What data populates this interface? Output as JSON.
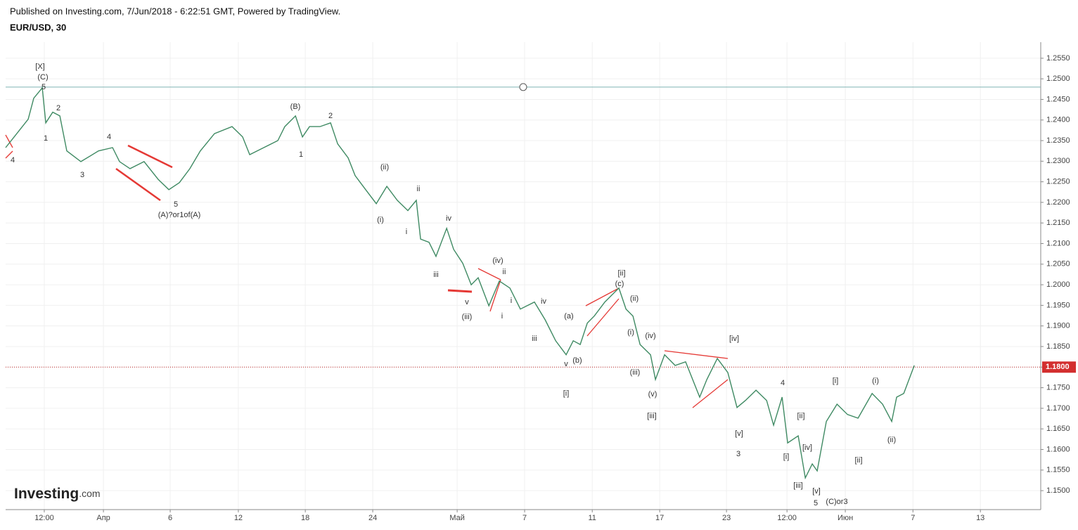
{
  "header": "Published on Investing.com, 7/Jun/2018 - 6:22:51 GMT, Powered by TradingView.",
  "logo": "Investing",
  "logo_suffix": ".com",
  "chart_data": {
    "type": "line",
    "title": "EUR/USD, 30",
    "x": [
      0,
      0.5,
      1.33,
      1.66,
      2.16,
      2.37,
      2.78,
      3.2,
      3.61,
      4.44,
      5.48,
      6.31,
      6.72,
      7.34,
      8.17,
      9.0,
      9.63,
      10.25,
      10.87,
      11.49,
      12.32,
      13.36,
      13.98,
      14.4,
      15.23,
      16.06,
      16.47,
      17.1,
      17.51,
      17.93,
      18.55,
      19.17,
      19.59,
      20.21,
      20.62,
      21.24,
      21.87,
      22.49,
      23.11,
      23.73,
      24.23,
      24.48,
      24.98,
      25.39,
      26.02,
      26.43,
      26.97,
      27.47,
      27.88,
      28.51,
      29.13,
      29.75,
      30.37,
      31.2,
      31.83,
      32.45,
      33.07,
      33.49,
      33.9,
      34.32,
      34.73,
      35.35,
      36.18,
      36.6,
      37.01,
      37.43,
      38.05,
      38.34,
      38.88,
      39.5,
      40.12,
      40.95,
      41.37,
      41.99,
      42.61,
      43.15,
      43.65,
      44.27,
      44.9,
      45.31,
      45.81,
      46.14,
      46.76,
      47.18,
      47.59,
      47.88,
      48.42,
      49.05,
      49.67,
      50.29,
      51.12,
      51.74,
      52.28,
      52.57,
      52.99,
      53.61
    ],
    "series": [
      {
        "name": "EUR/USD",
        "color": "#3f8a63",
        "values": [
          1.2333,
          1.2359,
          1.2402,
          1.2453,
          1.2478,
          1.2393,
          1.2419,
          1.241,
          1.2325,
          1.2299,
          1.2325,
          1.2333,
          1.2299,
          1.2282,
          1.2299,
          1.2256,
          1.2231,
          1.2248,
          1.2282,
          1.2325,
          1.2367,
          1.2384,
          1.2359,
          1.2316,
          1.2333,
          1.235,
          1.2384,
          1.241,
          1.2359,
          1.2384,
          1.2384,
          1.2393,
          1.2342,
          1.2308,
          1.2265,
          1.2231,
          1.2197,
          1.2239,
          1.2205,
          1.218,
          1.2205,
          1.2111,
          1.2103,
          1.2069,
          1.2137,
          1.2086,
          1.2052,
          1.2,
          1.2017,
          1.1949,
          1.2009,
          1.1992,
          1.1941,
          1.1958,
          1.1915,
          1.1864,
          1.183,
          1.1864,
          1.1855,
          1.1907,
          1.1924,
          1.1958,
          1.1992,
          1.1941,
          1.1924,
          1.1855,
          1.183,
          1.177,
          1.183,
          1.1804,
          1.1813,
          1.1727,
          1.177,
          1.1821,
          1.1787,
          1.1702,
          1.1719,
          1.1744,
          1.1719,
          1.1659,
          1.1727,
          1.1616,
          1.1633,
          1.1531,
          1.1565,
          1.1548,
          1.1668,
          1.171,
          1.1685,
          1.1676,
          1.1736,
          1.171,
          1.1668,
          1.1727,
          1.1736,
          1.1804
        ]
      }
    ],
    "xlim": [
      0,
      61.07
    ],
    "xticks": [
      {
        "value": 2.28,
        "label": "12:00"
      },
      {
        "value": 5.77,
        "label": "Апр"
      },
      {
        "value": 9.71,
        "label": "6"
      },
      {
        "value": 13.73,
        "label": "12"
      },
      {
        "value": 17.68,
        "label": "18"
      },
      {
        "value": 21.66,
        "label": "24"
      },
      {
        "value": 26.64,
        "label": "Май"
      },
      {
        "value": 30.62,
        "label": "7"
      },
      {
        "value": 34.61,
        "label": "11"
      },
      {
        "value": 38.59,
        "label": "17"
      },
      {
        "value": 42.53,
        "label": "23"
      },
      {
        "value": 46.1,
        "label": "12:00"
      },
      {
        "value": 49.54,
        "label": "Июн"
      },
      {
        "value": 53.53,
        "label": "7"
      },
      {
        "value": 57.51,
        "label": "13"
      }
    ],
    "ylim": [
      1.1454,
      1.2589
    ],
    "yticks": [
      {
        "value": 1.255,
        "label": "1.2550"
      },
      {
        "value": 1.25,
        "label": "1.2500"
      },
      {
        "value": 1.245,
        "label": "1.2450"
      },
      {
        "value": 1.24,
        "label": "1.2400"
      },
      {
        "value": 1.235,
        "label": "1.2350"
      },
      {
        "value": 1.23,
        "label": "1.2300"
      },
      {
        "value": 1.225,
        "label": "1.2250"
      },
      {
        "value": 1.22,
        "label": "1.2200"
      },
      {
        "value": 1.215,
        "label": "1.2150"
      },
      {
        "value": 1.21,
        "label": "1.2100"
      },
      {
        "value": 1.205,
        "label": "1.2050"
      },
      {
        "value": 1.2,
        "label": "1.2000"
      },
      {
        "value": 1.195,
        "label": "1.1950"
      },
      {
        "value": 1.19,
        "label": "1.1900"
      },
      {
        "value": 1.185,
        "label": "1.1850"
      },
      {
        "value": 1.18,
        "label": "1.1800"
      },
      {
        "value": 1.175,
        "label": "1.1750"
      },
      {
        "value": 1.17,
        "label": "1.1700"
      },
      {
        "value": 1.165,
        "label": "1.1650"
      },
      {
        "value": 1.16,
        "label": "1.1600"
      },
      {
        "value": 1.155,
        "label": "1.1550"
      },
      {
        "value": 1.15,
        "label": "1.1500"
      }
    ],
    "grid": true,
    "hline": 1.248,
    "last_price": {
      "value": 1.18,
      "label": "1.1800"
    },
    "annotations": [
      "[X]",
      "(C)",
      "5",
      "2",
      "1",
      "4",
      "3",
      "4",
      "5",
      "(A)?or1of(A)",
      "(B)",
      "2",
      "1",
      "(ii)",
      "ii",
      "(i)",
      "i",
      "iv",
      "iii",
      "(iv)",
      "ii",
      "v",
      "(iii)",
      "i",
      "i",
      "iv",
      "(a)",
      "iii",
      "v",
      "(b)",
      "[i]",
      "[ii]",
      "(c)",
      "(ii)",
      "(i)",
      "(iv)",
      "(iii)",
      "(v)",
      "[iii]",
      "[iv]",
      "[v]",
      "3",
      "4",
      "[ii]",
      "[i]",
      "[iv]",
      "[iii]",
      "[v]",
      "5",
      "(C)or3",
      "[i]",
      "(i)",
      "[ii]",
      "(ii)"
    ]
  }
}
